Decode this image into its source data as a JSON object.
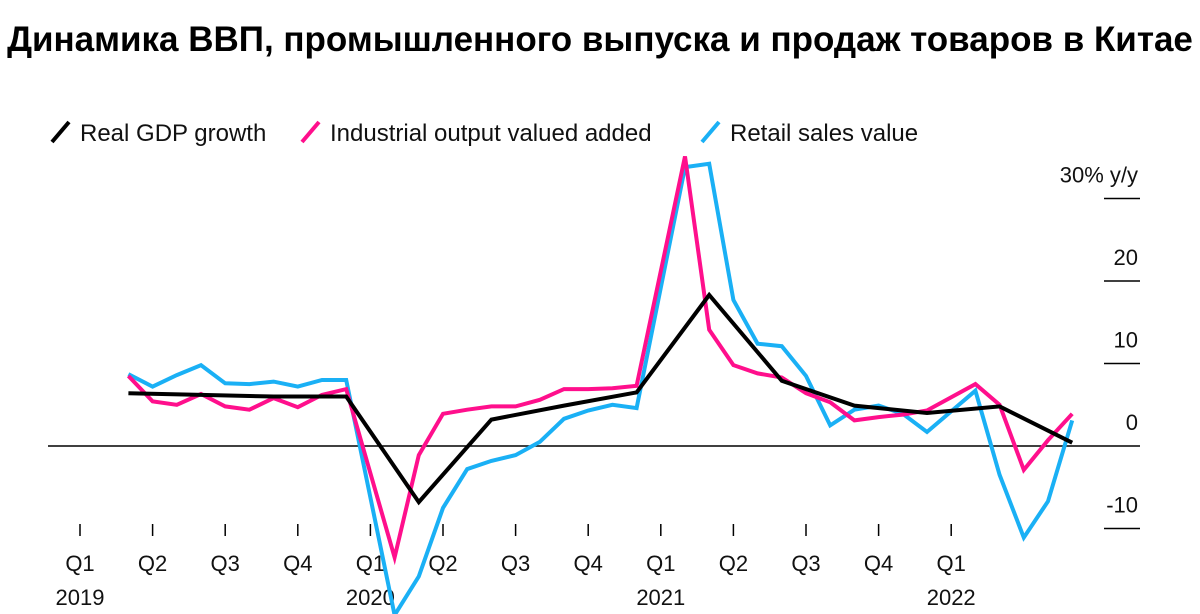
{
  "chart_data": {
    "type": "line",
    "title": "Динамика ВВП, промышленного выпуска и продаж товаров в Китае",
    "ylabel": "30% y/y",
    "ylim": [
      -12,
      36
    ],
    "yticks": [
      30,
      20,
      10,
      0,
      -10
    ],
    "ytick_labels": [
      "30% y/y",
      "20",
      "10",
      "0",
      "-10"
    ],
    "xticks": [
      {
        "label": "Q1",
        "year": "2019"
      },
      {
        "label": "Q2",
        "year": ""
      },
      {
        "label": "Q3",
        "year": ""
      },
      {
        "label": "Q4",
        "year": ""
      },
      {
        "label": "Q1",
        "year": "2020"
      },
      {
        "label": "Q2",
        "year": ""
      },
      {
        "label": "Q3",
        "year": ""
      },
      {
        "label": "Q4",
        "year": ""
      },
      {
        "label": "Q1",
        "year": "2021"
      },
      {
        "label": "Q2",
        "year": ""
      },
      {
        "label": "Q3",
        "year": ""
      },
      {
        "label": "Q4",
        "year": ""
      },
      {
        "label": "Q1",
        "year": "2022"
      }
    ],
    "x_start": "2019-01",
    "legend_placement": "top-left",
    "grid": false,
    "series": [
      {
        "name": "Real GDP growth",
        "color": "#000000",
        "frequency": "quarterly",
        "x": [
          "2019-03",
          "2019-06",
          "2019-09",
          "2019-12",
          "2020-03",
          "2020-06",
          "2020-09",
          "2020-12",
          "2021-03",
          "2021-06",
          "2021-09",
          "2021-12",
          "2022-03",
          "2022-06"
        ],
        "values": [
          6.4,
          6.2,
          6.0,
          6.0,
          -6.8,
          3.2,
          4.9,
          6.5,
          18.3,
          7.9,
          4.9,
          4.0,
          4.8,
          0.4
        ]
      },
      {
        "name": "Industrial output valued added",
        "color": "#ff0f8c",
        "frequency": "monthly",
        "x": [
          "2019-03",
          "2019-04",
          "2019-05",
          "2019-06",
          "2019-07",
          "2019-08",
          "2019-09",
          "2019-10",
          "2019-11",
          "2019-12",
          "2020-02",
          "2020-03",
          "2020-04",
          "2020-05",
          "2020-06",
          "2020-07",
          "2020-08",
          "2020-09",
          "2020-10",
          "2020-11",
          "2020-12",
          "2021-02",
          "2021-03",
          "2021-04",
          "2021-05",
          "2021-06",
          "2021-07",
          "2021-08",
          "2021-09",
          "2021-10",
          "2021-11",
          "2021-12",
          "2022-02",
          "2022-03",
          "2022-04",
          "2022-05",
          "2022-06"
        ],
        "values": [
          8.5,
          5.4,
          5.0,
          6.3,
          4.8,
          4.4,
          5.8,
          4.7,
          6.2,
          6.9,
          -13.5,
          -1.1,
          3.9,
          4.4,
          4.8,
          4.8,
          5.6,
          6.9,
          6.9,
          7.0,
          7.3,
          35.1,
          14.1,
          9.8,
          8.8,
          8.3,
          6.4,
          5.3,
          3.1,
          3.5,
          3.8,
          4.3,
          7.5,
          5.0,
          -2.9,
          0.7,
          3.9
        ]
      },
      {
        "name": "Retail sales value",
        "color": "#1ab0f5",
        "frequency": "monthly",
        "x": [
          "2019-03",
          "2019-04",
          "2019-05",
          "2019-06",
          "2019-07",
          "2019-08",
          "2019-09",
          "2019-10",
          "2019-11",
          "2019-12",
          "2020-02",
          "2020-03",
          "2020-04",
          "2020-05",
          "2020-06",
          "2020-07",
          "2020-08",
          "2020-09",
          "2020-10",
          "2020-11",
          "2020-12",
          "2021-02",
          "2021-03",
          "2021-04",
          "2021-05",
          "2021-06",
          "2021-07",
          "2021-08",
          "2021-09",
          "2021-10",
          "2021-11",
          "2021-12",
          "2022-02",
          "2022-03",
          "2022-04",
          "2022-05",
          "2022-06"
        ],
        "values": [
          8.7,
          7.2,
          8.6,
          9.8,
          7.6,
          7.5,
          7.8,
          7.2,
          8.0,
          8.0,
          -20.5,
          -15.8,
          -7.5,
          -2.8,
          -1.8,
          -1.1,
          0.5,
          3.3,
          4.3,
          5.0,
          4.6,
          33.8,
          34.2,
          17.7,
          12.4,
          12.1,
          8.5,
          2.5,
          4.4,
          4.9,
          3.9,
          1.7,
          6.7,
          -3.5,
          -11.1,
          -6.7,
          3.1
        ]
      }
    ]
  }
}
